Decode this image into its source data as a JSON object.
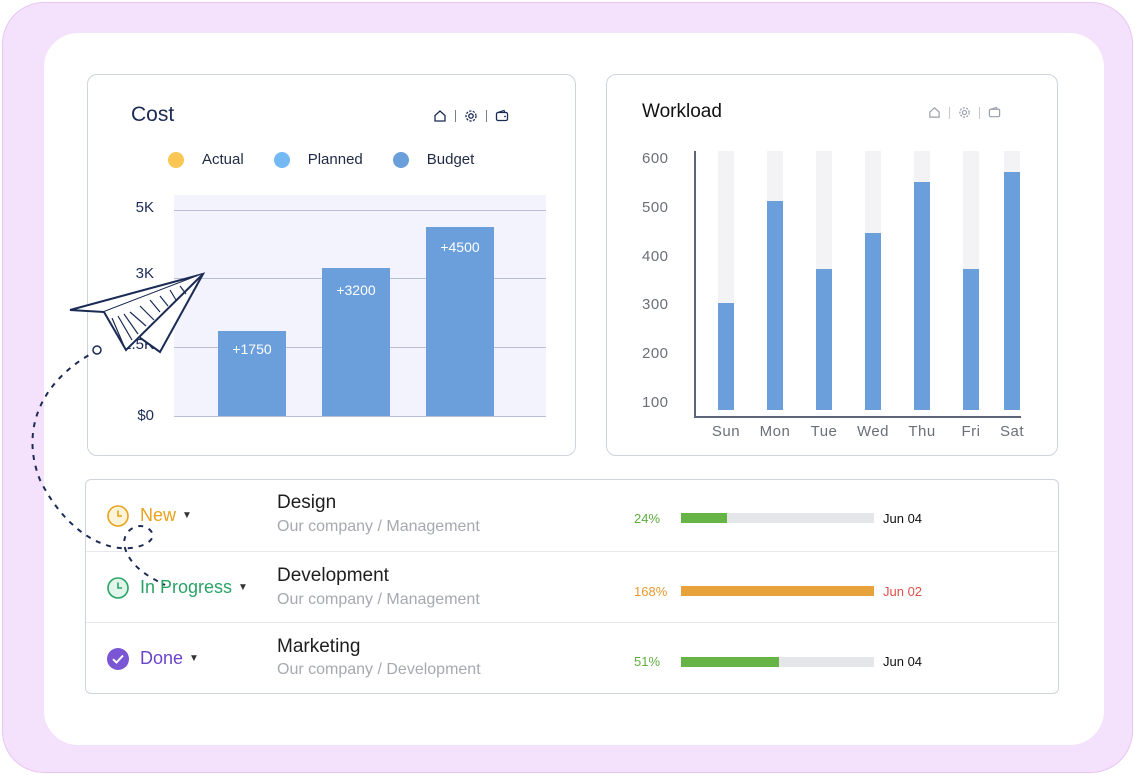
{
  "cost": {
    "title": "Cost",
    "tools": [
      "home-icon",
      "gear-icon",
      "wallet-icon"
    ],
    "legend": [
      {
        "label": "Actual",
        "color": "#fbc654"
      },
      {
        "label": "Planned",
        "color": "#74b8f4"
      },
      {
        "label": "Budget",
        "color": "#6a9fdc"
      }
    ],
    "y_ticks": [
      "5K",
      "3K",
      "1.5K",
      "$0"
    ],
    "bar_labels": [
      "+1750",
      "+3200",
      "+4500"
    ]
  },
  "workload": {
    "title": "Workload",
    "tools": [
      "home-icon",
      "gear-icon",
      "wallet-icon"
    ],
    "y_ticks": [
      "600",
      "500",
      "400",
      "300",
      "200",
      "100"
    ],
    "x_ticks": [
      "Sun",
      "Mon",
      "Tue",
      "Wed",
      "Thu",
      "Fri",
      "Sat"
    ]
  },
  "chart_data": [
    {
      "type": "bar",
      "title": "Cost",
      "series_names": [
        "Actual",
        "Planned",
        "Budget"
      ],
      "values": [
        1750,
        3200,
        4500
      ],
      "data_labels": [
        "+1750",
        "+3200",
        "+4500"
      ],
      "y_ticks": [
        "5K",
        "3K",
        "1.5K",
        "$0"
      ],
      "grid": true,
      "legend_position": "top"
    },
    {
      "type": "bar",
      "title": "Workload",
      "categories": [
        "Sun",
        "Mon",
        "Tue",
        "Wed",
        "Thu",
        "Fri",
        "Sat"
      ],
      "values": [
        320,
        530,
        390,
        465,
        570,
        390,
        590
      ],
      "ylim": [
        100,
        600
      ],
      "grid": false
    }
  ],
  "tasks": [
    {
      "status": "New",
      "status_color": "#e8a21c",
      "status_icon": "clock-icon",
      "title": "Design",
      "subtitle": "Our company / Management",
      "percent_label": "24%",
      "percent": 24,
      "percent_color": "#5eae3e",
      "bar_color": "#66b346",
      "date": "Jun 04",
      "date_color": "#111111"
    },
    {
      "status": "In Progress",
      "status_color": "#2aa366",
      "status_icon": "clock-icon",
      "title": "Development",
      "subtitle": "Our company / Management",
      "percent_label": "168%",
      "percent": 100,
      "percent_color": "#e89a2e",
      "bar_color": "#e8a23c",
      "date": "Jun 02",
      "date_color": "#e0504a"
    },
    {
      "status": "Done",
      "status_color": "#6b45c9",
      "status_icon": "check-circle-icon",
      "title": "Marketing",
      "subtitle": "Our company / Development",
      "percent_label": "51%",
      "percent": 51,
      "percent_color": "#5eae3e",
      "bar_color": "#66b346",
      "date": "Jun 04",
      "date_color": "#111111"
    }
  ]
}
